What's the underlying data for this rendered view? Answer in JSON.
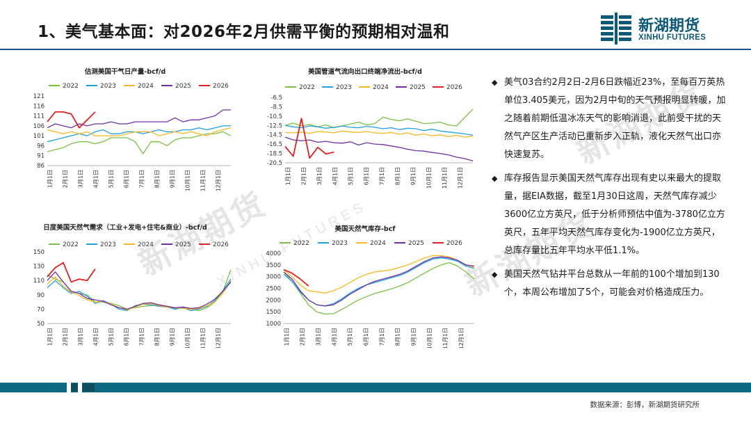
{
  "header": {
    "title": "1、美气基本面：对2026年2月供需平衡的预期相对温和",
    "logo_cn": "新湖期货",
    "logo_en": "XINHU FUTURES"
  },
  "watermarks": [
    "新湖期货",
    "XINHU FUTURES"
  ],
  "colors": {
    "s2022": "#7ac143",
    "s2023": "#20a0dc",
    "s2024": "#f5b820",
    "s2025": "#7030a0",
    "s2026": "#e02020"
  },
  "month_labels": [
    "1月1日",
    "2月1日",
    "3月1日",
    "4月1日",
    "5月1日",
    "6月1日",
    "7月1日",
    "8月1日",
    "9月1日",
    "10月1日",
    "11月1日",
    "12月1日"
  ],
  "chart_data": [
    {
      "id": "production",
      "type": "line",
      "title": "估测美国干气日产量-bcf/d",
      "series_names": [
        "2022",
        "2023",
        "2024",
        "2025",
        "2026"
      ],
      "ylim": [
        86,
        121
      ],
      "yticks": [
        "121",
        "116",
        "111",
        "106",
        "101",
        "96",
        "91",
        "86"
      ],
      "series": [
        {
          "name": "2022",
          "values": [
            93,
            94,
            95,
            97,
            98,
            98,
            97,
            98,
            100,
            100,
            100,
            98,
            92,
            98,
            98,
            96,
            99,
            100,
            100,
            101,
            102,
            102,
            103,
            101
          ]
        },
        {
          "name": "2023",
          "values": [
            98,
            99,
            100,
            101,
            102,
            101,
            103,
            104,
            102,
            102,
            103,
            103,
            102,
            103,
            104,
            103,
            103,
            104,
            104,
            105,
            104,
            105,
            106,
            106
          ]
        },
        {
          "name": "2024",
          "values": [
            104,
            103,
            102,
            103,
            102,
            103,
            101,
            101,
            101,
            101,
            102,
            103,
            103,
            103,
            101,
            102,
            103,
            102,
            103,
            102,
            101,
            103,
            104,
            105
          ]
        },
        {
          "name": "2025",
          "values": [
            105,
            107,
            106,
            105,
            107,
            106,
            107,
            107,
            108,
            107,
            107,
            108,
            108,
            108,
            108,
            108,
            110,
            108,
            109,
            109,
            110,
            111,
            114,
            114
          ]
        },
        {
          "name": "2026",
          "values": [
            108,
            113,
            113,
            112,
            105,
            109,
            113
          ]
        }
      ]
    },
    {
      "id": "lng",
      "type": "line",
      "title": "美国管道气流向出口终端净流出-bcf/d",
      "series_names": [
        "2022",
        "2023",
        "2024",
        "2025",
        "2026"
      ],
      "ylim": [
        -20.5,
        -6.5
      ],
      "yticks": [
        "-6.5",
        "-8.5",
        "-10.5",
        "-12.5",
        "-14.5",
        "-16.5",
        "-18.5",
        "-20.5"
      ],
      "series": [
        {
          "name": "2022",
          "values": [
            -12.5,
            -12.0,
            -12.6,
            -12.3,
            -12.8,
            -12.4,
            -13.0,
            -12.6,
            -12.2,
            -11.8,
            -12.4,
            -12.1,
            -10.7,
            -11.2,
            -11.5,
            -11.1,
            -11.6,
            -12.1,
            -12.0,
            -11.8,
            -12.4,
            -12.6,
            -10.8,
            -9.0
          ]
        },
        {
          "name": "2023",
          "values": [
            -12.5,
            -12.8,
            -13.0,
            -12.6,
            -12.8,
            -13.1,
            -12.9,
            -12.6,
            -12.9,
            -13.0,
            -12.7,
            -12.9,
            -13.2,
            -13.0,
            -13.4,
            -13.1,
            -13.2,
            -13.6,
            -13.3,
            -13.7,
            -13.9,
            -14.1,
            -14.3,
            -14.6
          ]
        },
        {
          "name": "2024",
          "values": [
            -14.0,
            -14.1,
            -13.9,
            -14.2,
            -13.8,
            -13.9,
            -14.1,
            -13.7,
            -13.9,
            -14.0,
            -13.8,
            -14.1,
            -14.2,
            -14.0,
            -14.4,
            -14.1,
            -14.6,
            -14.3,
            -14.7,
            -14.5,
            -14.9,
            -14.6,
            -15.0,
            -14.8
          ]
        },
        {
          "name": "2025",
          "values": [
            -15.0,
            -15.6,
            -15.8,
            -15.6,
            -16.1,
            -15.9,
            -16.2,
            -16.3,
            -16.0,
            -16.7,
            -16.2,
            -16.5,
            -16.6,
            -16.9,
            -17.2,
            -17.6,
            -17.9,
            -18.0,
            -18.3,
            -18.5,
            -18.8,
            -19.3,
            -19.6,
            -20.1
          ]
        },
        {
          "name": "2026",
          "values": [
            -17.0,
            -19.1,
            -11.0,
            -19.5,
            -17.2,
            -18.6,
            -18.2
          ]
        }
      ]
    },
    {
      "id": "demand",
      "type": "line",
      "title": "日度美国天然气需求（工业+发电+住宅&商业）-bcf/d",
      "series_names": [
        "2022",
        "2023",
        "2024",
        "2025",
        "2026"
      ],
      "ylim": [
        50,
        150
      ],
      "yticks": [
        "150",
        "130",
        "110",
        "90",
        "70",
        "50"
      ],
      "series": [
        {
          "name": "2022",
          "values": [
            118,
            112,
            108,
            95,
            92,
            90,
            80,
            80,
            78,
            75,
            70,
            72,
            74,
            75,
            76,
            74,
            71,
            73,
            70,
            68,
            72,
            80,
            95,
            125
          ]
        },
        {
          "name": "2023",
          "values": [
            100,
            110,
            100,
            92,
            95,
            88,
            78,
            82,
            77,
            70,
            68,
            75,
            77,
            76,
            74,
            73,
            70,
            72,
            68,
            70,
            74,
            82,
            96,
            112
          ]
        },
        {
          "name": "2024",
          "values": [
            105,
            115,
            102,
            94,
            89,
            83,
            80,
            81,
            77,
            72,
            69,
            73,
            77,
            78,
            75,
            73,
            72,
            71,
            70,
            71,
            75,
            80,
            92,
            110
          ]
        },
        {
          "name": "2025",
          "values": [
            110,
            122,
            108,
            95,
            92,
            85,
            83,
            81,
            76,
            72,
            70,
            74,
            78,
            79,
            76,
            74,
            72,
            73,
            71,
            72,
            77,
            84,
            95,
            108
          ]
        },
        {
          "name": "2026",
          "values": [
            115,
            128,
            135,
            108,
            112,
            110,
            126
          ]
        }
      ]
    },
    {
      "id": "storage",
      "type": "line",
      "title": "美国天然气库存-bcf",
      "series_names": [
        "2022",
        "2023",
        "2024",
        "2025",
        "2026"
      ],
      "ylim": [
        1000,
        4000
      ],
      "yticks": [
        "4000",
        "3500",
        "3000",
        "2500",
        "2000",
        "1500",
        "1000"
      ],
      "series": [
        {
          "name": "2022",
          "values": [
            3200,
            2800,
            2300,
            1800,
            1500,
            1400,
            1420,
            1600,
            1800,
            2000,
            2150,
            2280,
            2380,
            2480,
            2600,
            2750,
            2950,
            3150,
            3350,
            3500,
            3600,
            3450,
            3200,
            2900
          ]
        },
        {
          "name": "2023",
          "values": [
            3100,
            2800,
            2350,
            2000,
            1800,
            1750,
            1850,
            2050,
            2300,
            2500,
            2650,
            2750,
            2850,
            2950,
            3050,
            3200,
            3400,
            3600,
            3750,
            3800,
            3750,
            3650,
            3450,
            3350
          ]
        },
        {
          "name": "2024",
          "values": [
            3300,
            3000,
            2650,
            2400,
            2350,
            2300,
            2400,
            2550,
            2750,
            2950,
            3100,
            3200,
            3250,
            3300,
            3400,
            3500,
            3650,
            3800,
            3900,
            3900,
            3850,
            3700,
            3500,
            3400
          ]
        },
        {
          "name": "2025",
          "values": [
            3200,
            2900,
            2400,
            2000,
            1800,
            1750,
            1800,
            2000,
            2250,
            2450,
            2650,
            2800,
            2900,
            3000,
            3100,
            3250,
            3450,
            3650,
            3800,
            3850,
            3800,
            3700,
            3500,
            3450
          ]
        },
        {
          "name": "2026",
          "values": [
            3300,
            3150,
            2900,
            2600
          ]
        }
      ]
    }
  ],
  "bullets": [
    "美气03合约2月2日-2月6日跌幅近23%，至每百万英热单位3.405美元，因为2月中旬的天气预报明显转暖，加之随着前期低温冰冻天气的影响消退，此前受干扰的天然气产区生产活动已重新步入正轨，液化天然气出口亦快速复苏。",
    "库存报告显示美国天然气库存出现有史以来最大的提取量，据EIA数据，截至1月30日这周，天然气库存减少3600亿立方英尺，低于分析师预估中值为-3780亿立方英尺，五年平均天然气库存变化为-1900亿立方英尺，总库存量比五年平均水平低1.1%。",
    "美国天然气钻井平台总数从一年前的100个增加到130个，本周公布增加了5个，可能会对价格造成压力。"
  ],
  "bullet_marker": "◆",
  "source": "数据来源：彭博，新湖期货研究所"
}
